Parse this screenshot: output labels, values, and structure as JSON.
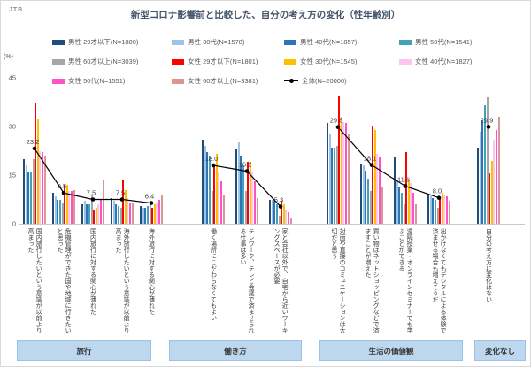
{
  "page": {
    "logo": "JTB"
  },
  "chart_data": {
    "type": "bar",
    "title": "新型コロナ影響前と比較した、自分の考え方の変化（性年齢別）",
    "unit_label": "(%)",
    "ylim": [
      0,
      45
    ],
    "yticks": [
      45,
      30,
      15,
      0
    ],
    "grid": false,
    "legend_position": "top",
    "series": [
      {
        "name": "男性 29才以下(N=1880)",
        "color": "#1F4E79"
      },
      {
        "name": "男性 30代(N=1578)",
        "color": "#9DC3E6"
      },
      {
        "name": "男性 40代(N=1857)",
        "color": "#2E75B6"
      },
      {
        "name": "男性 50代(N=1541)",
        "color": "#42A1B8"
      },
      {
        "name": "男性 60才以上(N=3039)",
        "color": "#A6A6A6"
      },
      {
        "name": "女性 29才以下(N=1801)",
        "color": "#FF0000"
      },
      {
        "name": "女性 30代(N=1545)",
        "color": "#FFC000"
      },
      {
        "name": "女性 40代(N=1827)",
        "color": "#FBC5F0"
      },
      {
        "name": "女性 50代(N=1551)",
        "color": "#FF52C5"
      },
      {
        "name": "女性 60才以上(N=3381)",
        "color": "#D99694"
      }
    ],
    "overall": {
      "name": "全体(N=20000)",
      "color": "#000000"
    },
    "groups": [
      {
        "label": "旅行",
        "categories": [
          {
            "label": "国内旅行したいという意識が以前より高まった",
            "total": 23.2,
            "values": [
              20,
              18,
              16,
              16,
              20,
              37,
              32.5,
              22.5,
              22,
              21
            ]
          },
          {
            "label": "危機管理ができた国や地域に行きたいと思った",
            "total": 9.5,
            "values": [
              9.5,
              8.5,
              7.5,
              7.5,
              6.5,
              12,
              12,
              10,
              10,
              10.5
            ]
          },
          {
            "label": "国内旅行に対する関心が薄れた",
            "total": 7.5,
            "values": [
              6,
              7,
              6,
              6,
              9,
              4.5,
              5,
              6,
              7.5,
              13.5
            ]
          },
          {
            "label": "海外旅行したいという意識が以前より高まった",
            "total": 7.5,
            "values": [
              8,
              7,
              6,
              5.5,
              5,
              13.5,
              10.5,
              8,
              6.5,
              6.5
            ]
          },
          {
            "label": "海外旅行に対する関心が薄れた",
            "total": 6.4,
            "values": [
              5.5,
              5,
              5,
              5.5,
              7,
              5,
              6,
              6.5,
              7.5,
              9
            ]
          }
        ]
      },
      {
        "label": "働き方",
        "categories": [
          {
            "label": "働く場所にこだわらなくてもよい",
            "total": 18.0,
            "values": [
              26,
              24,
              22,
              21,
              10,
              18,
              21.5,
              16,
              13,
              9
            ]
          },
          {
            "label": "テレワーク、テレビ会議で済ませられる仕事は多い",
            "total": 16.2,
            "values": [
              23,
              25,
              21,
              18,
              10,
              19,
              19,
              16,
              13,
              8
            ]
          },
          {
            "label": "家と会社以外で、自宅から近いワーキングスペースが必要",
            "total": 5.3,
            "values": [
              7.5,
              7.5,
              7,
              6,
              2.5,
              7,
              6,
              4.5,
              3.5,
              2
            ]
          }
        ]
      },
      {
        "label": "生活の価値観",
        "categories": [
          {
            "label": "対面や直接のコミュニケーションは大切だと思う",
            "total": 29.8,
            "values": [
              31,
              27.5,
              23.5,
              23.5,
              24,
              39.5,
              33,
              31.5,
              31,
              27.5
            ]
          },
          {
            "label": "買い物はネットショッピングなどで済ますことが増えた",
            "total": 18.1,
            "values": [
              18.5,
              18,
              16.5,
              14,
              10,
              30,
              29,
              21.5,
              20.5,
              11.5
            ]
          },
          {
            "label": "遠隔授業・オンラインセミナーでも学ぶことができる",
            "total": 11.6,
            "values": [
              20.5,
              13.5,
              11.5,
              9.5,
              6,
              22,
              13.5,
              12.5,
              9.5,
              6
            ]
          },
          {
            "label": "出かけなくてもデジタルによる体験で済ませる場合も増えそうだ",
            "total": 8.0,
            "values": [
              9,
              8.5,
              8,
              7.5,
              5,
              8,
              9.5,
              9,
              8.5,
              7
            ]
          }
        ]
      },
      {
        "label": "変化なし",
        "categories": [
          {
            "label": "自分の考え方に変化はない",
            "total": 29.9,
            "values": [
              23.5,
              28.5,
              32,
              36.5,
              39,
              15.5,
              19.5,
              26,
              29,
              33
            ]
          }
        ]
      }
    ]
  }
}
